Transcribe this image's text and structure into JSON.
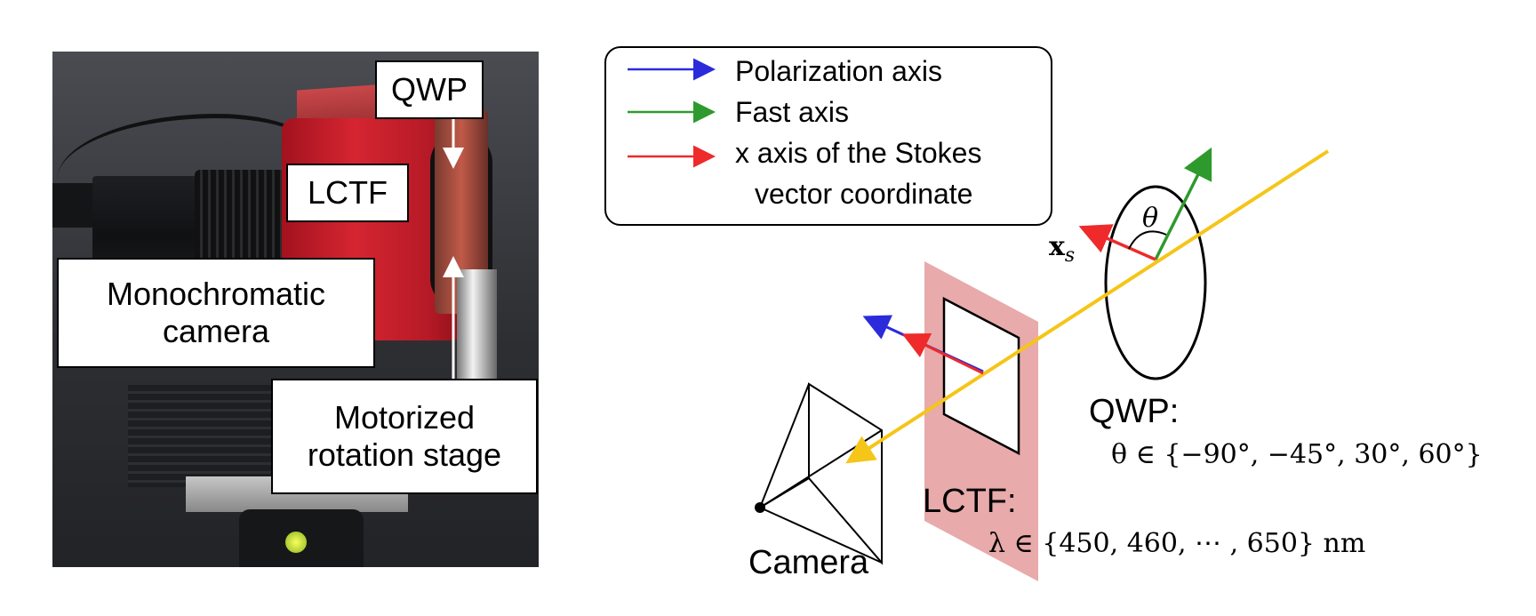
{
  "photo": {
    "labels": {
      "qwp": "QWP",
      "lctf": "LCTF",
      "mono_line1": "Monochromatic",
      "mono_line2": "camera",
      "motor_line1": "Motorized",
      "motor_line2": "rotation stage"
    }
  },
  "legend": {
    "items": [
      {
        "label": "Polarization axis",
        "color": "#2b2bdc"
      },
      {
        "label": "Fast axis",
        "color": "#2e9a2e"
      },
      {
        "label_line1": "x axis of the Stokes",
        "label_line2": "vector coordinate",
        "color": "#ee2a2a"
      }
    ]
  },
  "diagram": {
    "xs_label": "x",
    "xs_sub": "s",
    "theta_label": "θ",
    "qwp_title": "QWP:",
    "qwp_set": "θ ∈ {−90°, −45°, 30°, 60°}",
    "lctf_title": "LCTF:",
    "lctf_set": "λ ∈ {450, 460, ⋯ , 650} nm",
    "camera_title": "Camera",
    "colors": {
      "beam": "#f5c518",
      "filter": "#e8aaaa",
      "polarization": "#2b2bdc",
      "fast": "#2e9a2e",
      "stokes_x": "#ee2a2a"
    }
  }
}
